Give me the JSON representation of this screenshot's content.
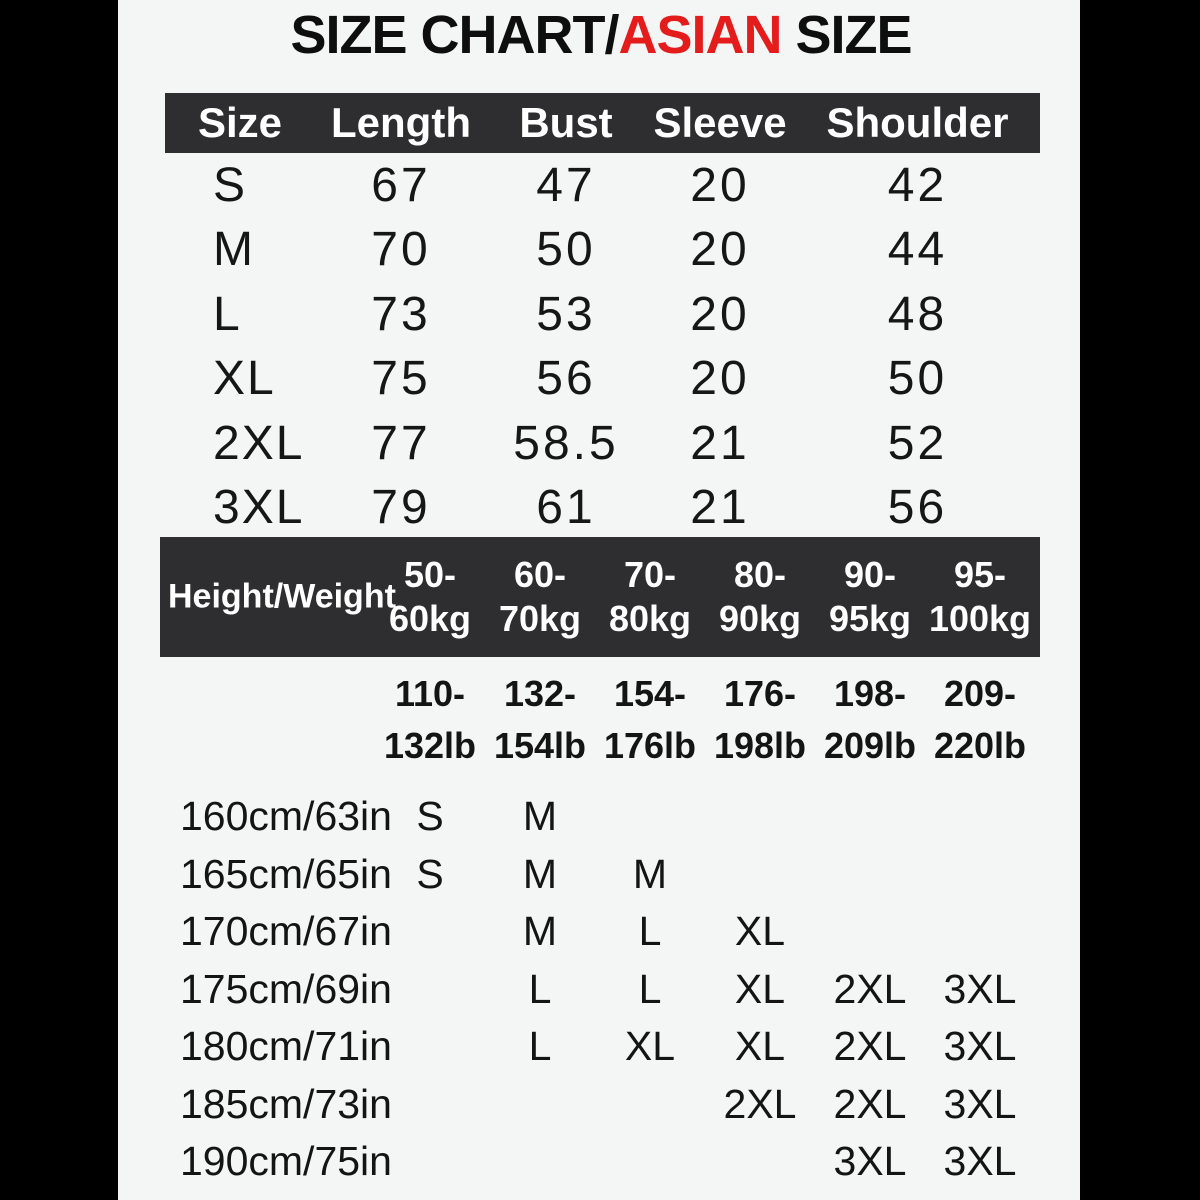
{
  "title": {
    "black_left": "SIZE CHART/",
    "red": "ASIAN",
    "black_right": " SIZE"
  },
  "colors": {
    "accent_red": "#e41c1c",
    "header_bar_dark": "#2e2e30",
    "letterbox_black": "#000000",
    "page_background": "#f3f6f4",
    "header_text_white": "#ffffff",
    "text_black": "#141414"
  },
  "chart_data": [
    {
      "type": "table",
      "title": "SIZE CHART/ASIAN SIZE",
      "columns": [
        "Size",
        "Length",
        "Bust",
        "Sleeve",
        "Shoulder"
      ],
      "rows": [
        [
          "S",
          "67",
          "47",
          "20",
          "42"
        ],
        [
          "M",
          "70",
          "50",
          "20",
          "44"
        ],
        [
          "L",
          "73",
          "53",
          "20",
          "48"
        ],
        [
          "XL",
          "75",
          "56",
          "20",
          "50"
        ],
        [
          "2XL",
          "77",
          "58.5",
          "21",
          "52"
        ],
        [
          "3XL",
          "79",
          "61",
          "21",
          "56"
        ]
      ]
    },
    {
      "type": "table",
      "title": "Height/Weight size recommendation",
      "corner_label": "Height/Weight",
      "weight_kg": [
        [
          "50-",
          "60kg"
        ],
        [
          "60-",
          "70kg"
        ],
        [
          "70-",
          "80kg"
        ],
        [
          "80-",
          "90kg"
        ],
        [
          "90-",
          "95kg"
        ],
        [
          "95-",
          "100kg"
        ]
      ],
      "weight_lb": [
        [
          "110-",
          "132lb"
        ],
        [
          "132-",
          "154lb"
        ],
        [
          "154-",
          "176lb"
        ],
        [
          "176-",
          "198lb"
        ],
        [
          "198-",
          "209lb"
        ],
        [
          "209-",
          "220lb"
        ]
      ],
      "height_rows": [
        {
          "label": "160cm/63in",
          "cells": [
            {
              "col": 1,
              "size": "S"
            },
            {
              "col": 2,
              "size": "M"
            }
          ]
        },
        {
          "label": "165cm/65in",
          "cells": [
            {
              "col": 1,
              "size": "S"
            },
            {
              "col": 2,
              "size": "M"
            },
            {
              "col": 3,
              "size": "M"
            }
          ]
        },
        {
          "label": "170cm/67in",
          "cells": [
            {
              "col": 2,
              "size": "M"
            },
            {
              "col": 3,
              "size": "L"
            },
            {
              "col": 4,
              "size": "XL"
            }
          ]
        },
        {
          "label": "175cm/69in",
          "cells": [
            {
              "col": 2,
              "size": "L"
            },
            {
              "col": 3,
              "size": "L"
            },
            {
              "col": 4,
              "size": "XL"
            },
            {
              "col": 5,
              "size": "2XL"
            },
            {
              "col": 6,
              "size": "3XL"
            }
          ]
        },
        {
          "label": "180cm/71in",
          "cells": [
            {
              "col": 2,
              "size": "L"
            },
            {
              "col": 3,
              "size": "XL"
            },
            {
              "col": 4,
              "size": "XL"
            },
            {
              "col": 5,
              "size": "2XL"
            },
            {
              "col": 6,
              "size": "3XL"
            }
          ]
        },
        {
          "label": "185cm/73in",
          "cells": [
            {
              "col": 4,
              "size": "2XL"
            },
            {
              "col": 5,
              "size": "2XL"
            },
            {
              "col": 6,
              "size": "3XL"
            }
          ]
        },
        {
          "label": "190cm/75in",
          "cells": [
            {
              "col": 5,
              "size": "3XL"
            },
            {
              "col": 6,
              "size": "3XL"
            }
          ]
        }
      ]
    }
  ]
}
